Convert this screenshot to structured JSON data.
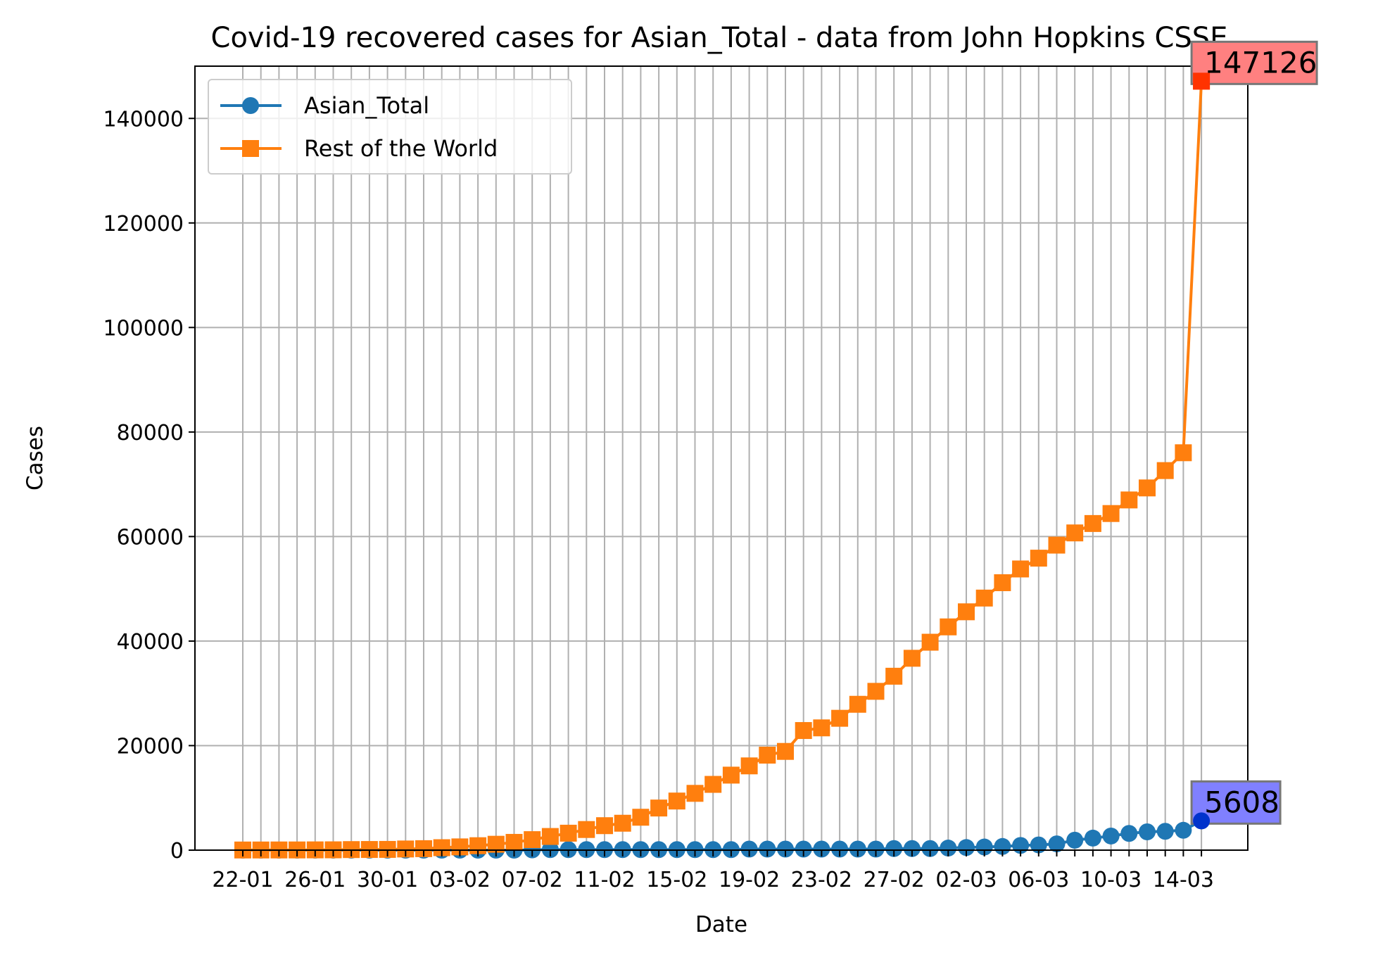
{
  "chart_data": {
    "type": "line",
    "title": "Covid-19 recovered cases for Asian_Total - data from John Hopkins CSSE",
    "xlabel": "Date",
    "ylabel": "Cases",
    "grid": true,
    "legend_position": "upper-left",
    "ylim": [
      0,
      150000
    ],
    "yticks": [
      0,
      20000,
      40000,
      60000,
      80000,
      100000,
      120000,
      140000
    ],
    "x": [
      "22-01",
      "23-01",
      "24-01",
      "25-01",
      "26-01",
      "27-01",
      "28-01",
      "29-01",
      "30-01",
      "31-01",
      "01-02",
      "02-02",
      "03-02",
      "04-02",
      "05-02",
      "06-02",
      "07-02",
      "08-02",
      "09-02",
      "10-02",
      "11-02",
      "12-02",
      "13-02",
      "14-02",
      "15-02",
      "16-02",
      "17-02",
      "18-02",
      "19-02",
      "20-02",
      "21-02",
      "22-02",
      "23-02",
      "24-02",
      "25-02",
      "26-02",
      "27-02",
      "28-02",
      "29-02",
      "01-03",
      "02-03",
      "03-03",
      "04-03",
      "05-03",
      "06-03",
      "07-03",
      "08-03",
      "09-03",
      "10-03",
      "11-03",
      "12-03",
      "13-03",
      "14-03",
      "15-03"
    ],
    "xticks": [
      "22-01",
      "26-01",
      "30-01",
      "03-02",
      "07-02",
      "11-02",
      "15-02",
      "19-02",
      "23-02",
      "27-02",
      "02-03",
      "06-03",
      "10-03",
      "14-03"
    ],
    "series": [
      {
        "name": "Asian_Total",
        "color": "#1f77b4",
        "marker": "circle",
        "values": [
          0,
          0,
          0,
          0,
          0,
          0,
          0,
          0,
          0,
          0,
          0,
          0,
          0,
          0,
          0,
          0,
          50,
          100,
          100,
          100,
          100,
          100,
          100,
          100,
          100,
          100,
          100,
          100,
          200,
          200,
          200,
          200,
          200,
          200,
          200,
          200,
          300,
          300,
          300,
          400,
          500,
          600,
          700,
          900,
          1000,
          1200,
          1900,
          2300,
          2700,
          3200,
          3500,
          3600,
          3800,
          5608
        ]
      },
      {
        "name": "Rest of the World",
        "color": "#ff7f0e",
        "marker": "square",
        "values": [
          28,
          30,
          36,
          39,
          52,
          61,
          107,
          126,
          143,
          222,
          284,
          472,
          623,
          852,
          1124,
          1487,
          2011,
          2616,
          3244,
          3946,
          4683,
          5150,
          6295,
          8058,
          9395,
          10865,
          12583,
          14352,
          16121,
          18177,
          18890,
          22886,
          23394,
          25227,
          27905,
          30384,
          33277,
          36711,
          39782,
          42716,
          45602,
          48229,
          51171,
          53797,
          55866,
          58359,
          60694,
          62494,
          64404,
          67003,
          69302,
          72621,
          76034,
          147126
        ]
      }
    ],
    "annotations": [
      {
        "text": "147126",
        "series": "Rest of the World",
        "box_color": "#ff8080",
        "point_color": "#ff3300"
      },
      {
        "text": "5608",
        "series": "Asian_Total",
        "box_color": "#8080ff",
        "point_color": "#0033cc"
      }
    ]
  }
}
